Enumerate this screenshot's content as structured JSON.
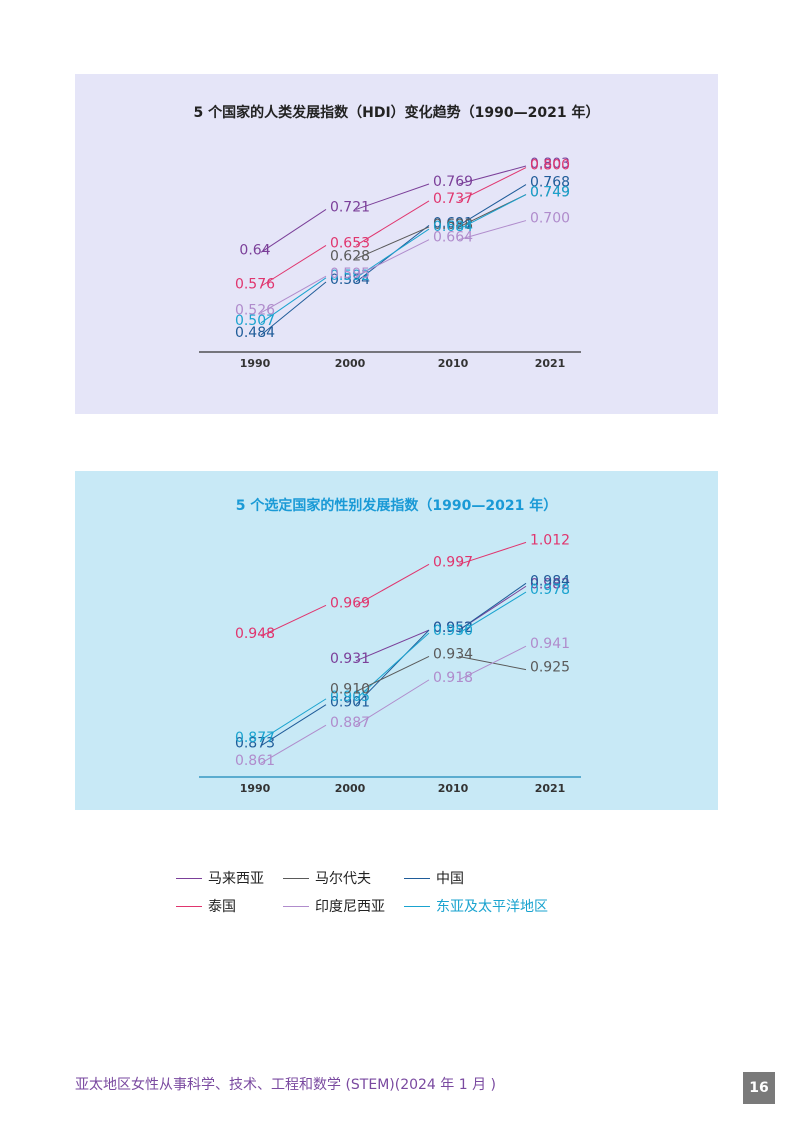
{
  "colors": {
    "malaysia": "#7b3f99",
    "maldives": "#5a5a5a",
    "china": "#1f5c99",
    "thailand": "#e0356e",
    "indonesia": "#b08ccc",
    "east_asia_pacific": "#1aa3cf"
  },
  "chart_data": [
    {
      "type": "line",
      "title": "5 个国家的人类发展指数（HDI）变化趋势（1990—2021 年）",
      "categories": [
        "1990",
        "2000",
        "2010",
        "2021"
      ],
      "ylim": [
        0.45,
        0.82
      ],
      "grid": false,
      "series": [
        {
          "name": "马来西亚",
          "color": "#7b3f99",
          "values": [
            0.64,
            0.721,
            0.769,
            0.803
          ],
          "labels": [
            "0.64",
            "0.721",
            "0.769",
            "0.803"
          ]
        },
        {
          "name": "泰国",
          "color": "#e0356e",
          "values": [
            0.576,
            0.653,
            0.737,
            0.8
          ],
          "labels": [
            "0.576",
            "0.653",
            "0.737",
            "0.800"
          ]
        },
        {
          "name": "中国",
          "color": "#1f5c99",
          "values": [
            0.484,
            0.584,
            0.691,
            0.768
          ],
          "labels": [
            "0.484",
            "0.584",
            "0.691",
            "0.768"
          ]
        },
        {
          "name": "马尔代夫",
          "color": "#5a5a5a",
          "values": [
            null,
            0.628,
            0.688,
            0.749
          ],
          "labels": [
            "",
            "0.628",
            "0.688",
            "0.749"
          ]
        },
        {
          "name": "东亚及太平洋地区",
          "color": "#1aa3cf",
          "values": [
            0.507,
            0.592,
            0.684,
            0.749
          ],
          "labels": [
            "0.507",
            "0.592",
            "0.684",
            "0.749"
          ]
        },
        {
          "name": "印度尼西亚",
          "color": "#b08ccc",
          "values": [
            0.526,
            0.595,
            0.664,
            0.7
          ],
          "labels": [
            "0.526",
            "0.595",
            "0.664",
            "0.700"
          ]
        }
      ]
    },
    {
      "type": "line",
      "title": "5 个选定国家的性别发展指数（1990—2021 年）",
      "categories": [
        "1990",
        "2000",
        "2010",
        "2021"
      ],
      "ylim": [
        0.855,
        1.015
      ],
      "grid": false,
      "series": [
        {
          "name": "泰国",
          "color": "#e0356e",
          "values": [
            0.948,
            0.969,
            0.997,
            1.012
          ],
          "labels": [
            "0.948",
            "0.969",
            "0.997",
            "1.012"
          ]
        },
        {
          "name": "马来西亚",
          "color": "#7b3f99",
          "values": [
            null,
            0.931,
            0.952,
            0.982
          ],
          "labels": [
            "",
            "0.931",
            "0.952",
            "0.982"
          ]
        },
        {
          "name": "中国",
          "color": "#1f5c99",
          "values": [
            0.873,
            0.901,
            0.952,
            0.984
          ],
          "labels": [
            "0.873",
            "0.901",
            "0.952",
            "0.984"
          ]
        },
        {
          "name": "东亚及太平洋地区",
          "color": "#1aa3cf",
          "values": [
            0.877,
            0.905,
            0.95,
            0.978
          ],
          "labels": [
            "0.877",
            "0.905",
            "0.950",
            "0.978"
          ]
        },
        {
          "name": "马尔代夫",
          "color": "#5a5a5a",
          "values": [
            null,
            0.91,
            0.934,
            0.925
          ],
          "labels": [
            "",
            "0.910",
            "0.934",
            "0.925"
          ]
        },
        {
          "name": "印度尼西亚",
          "color": "#b08ccc",
          "values": [
            0.861,
            0.887,
            0.918,
            0.941
          ],
          "labels": [
            "0.861",
            "0.887",
            "0.918",
            "0.941"
          ]
        }
      ]
    }
  ],
  "legend": [
    {
      "label": "马来西亚",
      "color": "#7b3f99"
    },
    {
      "label": "马尔代夫",
      "color": "#5a5a5a"
    },
    {
      "label": "中国",
      "color": "#1f5c99"
    },
    {
      "label": "泰国",
      "color": "#e0356e"
    },
    {
      "label": "印度尼西亚",
      "color": "#b08ccc"
    },
    {
      "label": "东亚及太平洋地区",
      "color": "#1aa3cf"
    }
  ],
  "footer": {
    "text": "亚太地区女性从事科学、技术、工程和数学 (STEM)(2024 年 1 月 )",
    "page_number": "16"
  }
}
